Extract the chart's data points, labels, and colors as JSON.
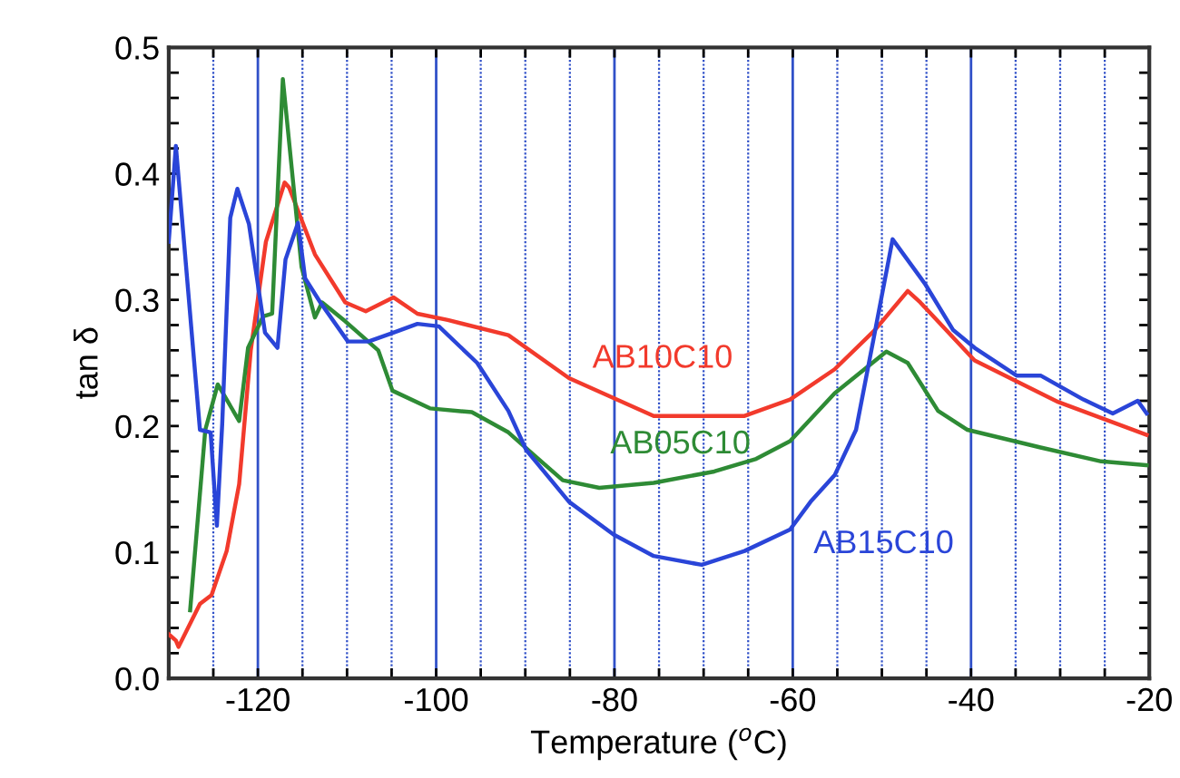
{
  "chart_data": {
    "type": "line",
    "xlabel": "Temperature ($^{o}$C)",
    "ylabel": "tan δ",
    "xlim": [
      -130,
      -20
    ],
    "xticks": [
      {
        "value": -130,
        "label": null
      },
      {
        "value": -125,
        "label": null
      },
      -120,
      {
        "value": -115,
        "label": null
      },
      {
        "value": -110,
        "label": null
      },
      {
        "value": -105,
        "label": null
      },
      -100,
      {
        "value": -95,
        "label": null
      },
      {
        "value": -90,
        "label": null
      },
      {
        "value": -85,
        "label": null
      },
      -80,
      {
        "value": -75,
        "label": null
      },
      {
        "value": -70,
        "label": null
      },
      {
        "value": -65,
        "label": null
      },
      -60,
      {
        "value": -55,
        "label": null
      },
      {
        "value": -50,
        "label": null
      },
      {
        "value": -45,
        "label": null
      },
      -40,
      {
        "value": -35,
        "label": null
      },
      {
        "value": -30,
        "label": null
      },
      {
        "value": -25,
        "label": null
      },
      -20
    ],
    "ylim": [
      0,
      0.5
    ],
    "yticks": [
      {
        "value": 0,
        "label": "0.0"
      },
      {
        "value": 0.02,
        "label": null
      },
      {
        "value": 0.04,
        "label": null
      },
      {
        "value": 0.06,
        "label": null
      },
      {
        "value": 0.08,
        "label": null
      },
      0.1,
      {
        "value": 0.12,
        "label": null
      },
      {
        "value": 0.14,
        "label": null
      },
      {
        "value": 0.16,
        "label": null
      },
      {
        "value": 0.18,
        "label": null
      },
      0.2,
      {
        "value": 0.22,
        "label": null
      },
      {
        "value": 0.24,
        "label": null
      },
      {
        "value": 0.26,
        "label": null
      },
      {
        "value": 0.28,
        "label": null
      },
      0.3,
      {
        "value": 0.32,
        "label": null
      },
      {
        "value": 0.34,
        "label": null
      },
      {
        "value": 0.36,
        "label": null
      },
      {
        "value": 0.38,
        "label": null
      },
      0.4,
      {
        "value": 0.42,
        "label": null
      },
      {
        "value": 0.44,
        "label": null
      },
      {
        "value": 0.46,
        "label": null
      },
      {
        "value": 0.48,
        "label": null
      },
      0.5
    ],
    "grid": "x",
    "marker": "none",
    "line_style": "solid",
    "series": [
      {
        "name": "AB10C10",
        "color": "#f23a2c",
        "x": [
          -130,
          -129.2,
          -128.9,
          -126.5,
          -125.2,
          -123.5,
          -122.1,
          -120.8,
          -119.1,
          -117.0,
          -116.5,
          -113.6,
          -110.2,
          -107.9,
          -104.8,
          -102.1,
          -98.7,
          -91.9,
          -85.1,
          -75.6,
          -65.4,
          -60.3,
          -55.3,
          -50.8,
          -47.1,
          -45.7,
          -39.6,
          -30.2,
          -20.3
        ],
        "values": [
          0.035,
          0.03,
          0.025,
          0.059,
          0.066,
          0.101,
          0.154,
          0.26,
          0.346,
          0.393,
          0.389,
          0.336,
          0.298,
          0.291,
          0.302,
          0.289,
          0.284,
          0.272,
          0.238,
          0.208,
          0.208,
          0.221,
          0.245,
          0.276,
          0.307,
          0.298,
          0.252,
          0.219,
          0.193
        ]
      },
      {
        "name": "AB05C10",
        "color": "#2e8b35",
        "x": [
          -127.6,
          -125.9,
          -124.5,
          -122.1,
          -121.1,
          -119.4,
          -118.4,
          -117.2,
          -115.1,
          -113.6,
          -112.8,
          -110.2,
          -106.5,
          -104.9,
          -100.7,
          -96.0,
          -91.9,
          -89.2,
          -85.8,
          -81.7,
          -75.6,
          -68.8,
          -64.1,
          -60.3,
          -55.3,
          -49.5,
          -47.1,
          -43.7,
          -40.4,
          -32.2,
          -25.4,
          -20.3
        ],
        "values": [
          0.054,
          0.197,
          0.233,
          0.204,
          0.262,
          0.287,
          0.289,
          0.475,
          0.326,
          0.286,
          0.298,
          0.283,
          0.26,
          0.228,
          0.214,
          0.211,
          0.195,
          0.178,
          0.157,
          0.151,
          0.155,
          0.164,
          0.174,
          0.188,
          0.226,
          0.259,
          0.25,
          0.212,
          0.197,
          0.183,
          0.172,
          0.169
        ]
      },
      {
        "name": "AB15C10",
        "color": "#2a45d8",
        "x": [
          -130,
          -129.2,
          -126.5,
          -125.3,
          -124.6,
          -124.0,
          -123.1,
          -122.3,
          -121.0,
          -119.2,
          -117.8,
          -116.9,
          -115.5,
          -114.7,
          -113.0,
          -109.9,
          -107.6,
          -104.8,
          -102.1,
          -99.7,
          -95.4,
          -91.9,
          -89.9,
          -85.1,
          -80.1,
          -75.6,
          -70.2,
          -65.4,
          -60.3,
          -58.0,
          -55.3,
          -52.9,
          -50.8,
          -48.8,
          -45.1,
          -42.0,
          -39.6,
          -34.9,
          -32.2,
          -27.4,
          -24.1,
          -21.3,
          -20.3
        ],
        "values": [
          0.346,
          0.422,
          0.197,
          0.195,
          0.121,
          0.202,
          0.365,
          0.388,
          0.36,
          0.274,
          0.262,
          0.332,
          0.361,
          0.317,
          0.298,
          0.267,
          0.267,
          0.274,
          0.281,
          0.279,
          0.25,
          0.212,
          0.181,
          0.14,
          0.114,
          0.097,
          0.09,
          0.101,
          0.118,
          0.14,
          0.161,
          0.197,
          0.274,
          0.348,
          0.312,
          0.276,
          0.262,
          0.24,
          0.24,
          0.221,
          0.21,
          0.22,
          0.21
        ]
      }
    ]
  }
}
